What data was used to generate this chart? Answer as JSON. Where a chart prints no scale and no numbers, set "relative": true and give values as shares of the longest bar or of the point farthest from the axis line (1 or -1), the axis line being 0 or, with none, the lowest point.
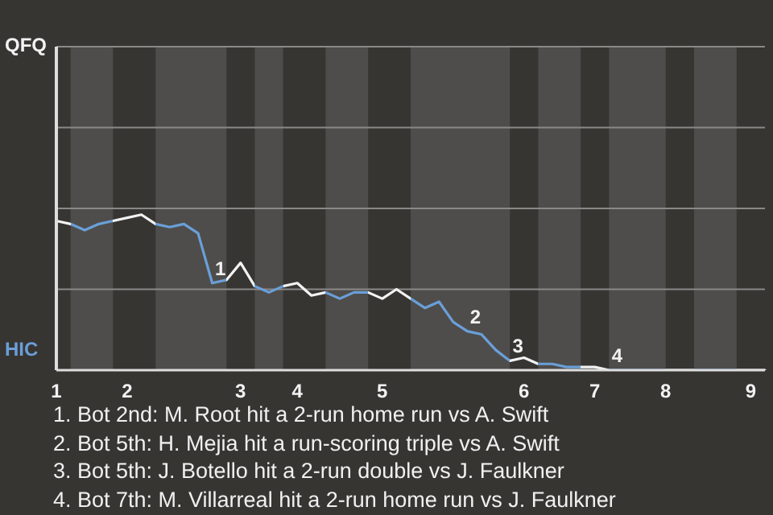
{
  "chart_data": {
    "type": "line",
    "marker": "none",
    "relative": true,
    "categories": [
      "1",
      null,
      null,
      null,
      null,
      "2",
      null,
      null,
      null,
      null,
      null,
      null,
      null,
      "3",
      null,
      null,
      null,
      "4",
      null,
      null,
      null,
      null,
      null,
      "5",
      null,
      null,
      null,
      null,
      null,
      null,
      null,
      null,
      null,
      "6",
      null,
      null,
      null,
      null,
      "7",
      null,
      null,
      null,
      null,
      "8",
      null,
      null,
      null,
      null,
      null,
      "9",
      null
    ],
    "series": [
      {
        "values": [
          0.96,
          0.94,
          0.9,
          0.94,
          0.96,
          0.98,
          1,
          0.94,
          0.92,
          0.94,
          0.88,
          0.56,
          0.58,
          0.69,
          0.54,
          0.5,
          0.54,
          0.56,
          0.48,
          0.5,
          0.46,
          0.5,
          0.5,
          0.46,
          0.52,
          0.46,
          0.4,
          0.44,
          0.31,
          0.25,
          0.23,
          0.13,
          0.06,
          0.08,
          0.04,
          0.04,
          0.02,
          0.02,
          0.02,
          0,
          0,
          0,
          0,
          0,
          0,
          0,
          0,
          0,
          0,
          0,
          0
        ],
        "colors": [
          "#f2f2f2",
          "#f2f2f2",
          "#6a9fd8",
          "#6a9fd8",
          "#6a9fd8",
          "#f2f2f2",
          "#f2f2f2",
          "#f2f2f2",
          "#6a9fd8",
          "#6a9fd8",
          "#6a9fd8",
          "#6a9fd8",
          "#6a9fd8",
          "#f2f2f2",
          "#f2f2f2",
          "#6a9fd8",
          "#6a9fd8",
          "#f2f2f2",
          "#f2f2f2",
          "#f2f2f2",
          "#6a9fd8",
          "#6a9fd8",
          "#6a9fd8",
          "#f2f2f2",
          "#f2f2f2",
          "#f2f2f2",
          "#6a9fd8",
          "#6a9fd8",
          "#6a9fd8",
          "#6a9fd8",
          "#6a9fd8",
          "#6a9fd8",
          "#6a9fd8",
          "#f2f2f2",
          "#f2f2f2",
          "#6a9fd8",
          "#6a9fd8",
          "#6a9fd8",
          "#f2f2f2",
          "#f2f2f2",
          "#6a9fd8",
          "#6a9fd8",
          "#6a9fd8",
          "#6a9fd8",
          "#f2f2f2",
          "#f2f2f2",
          "#6a9fd8",
          "#6a9fd8",
          "#6a9fd8",
          "#f2f2f2",
          "#f2f2f2"
        ]
      }
    ],
    "ref_lines": [
      {
        "axis": "y",
        "value": 0.52,
        "color": "#8a8987"
      },
      {
        "axis": "y",
        "value": 1.04,
        "color": "#8a8987"
      },
      {
        "axis": "y",
        "value": 1.56,
        "color": "#8a8987"
      },
      {
        "axis": "y",
        "value": 2.08,
        "color": "#8a8987"
      }
    ],
    "annotations": [
      "QFQ",
      "HIC",
      {
        "text": "1",
        "y": 0.56
      },
      {
        "text": "2",
        "y": 0.25
      },
      {
        "text": "3",
        "y": 0.06
      },
      {
        "text": "4",
        "y": 0
      },
      "1. Bot 2nd: M. Root hit a 2-run home run vs A. Swift",
      "2. Bot 5th: H. Mejia hit a run-scoring triple vs A. Swift",
      "3. Bot 5th: J. Botello hit a 2-run double vs J. Faulkner",
      "4. Bot 7th: M. Villarreal hit a 2-run home run vs J. Faulkner"
    ]
  }
}
